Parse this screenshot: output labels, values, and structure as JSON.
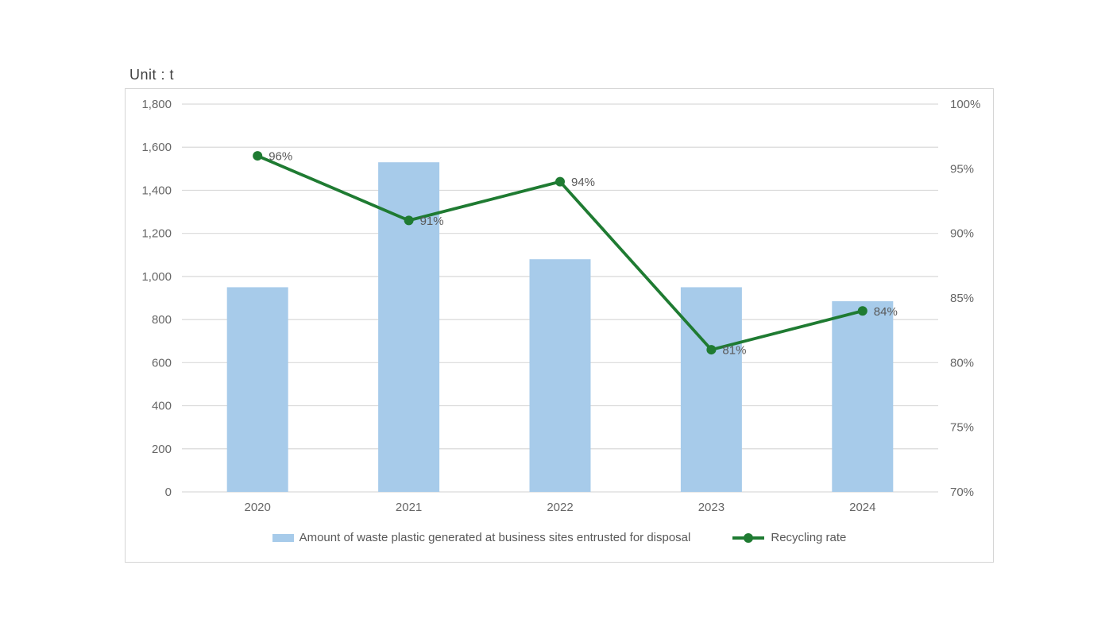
{
  "chart": {
    "unit_label": "Unit : t"
  },
  "chart_data": {
    "type": "combo",
    "title": "",
    "categories": [
      "2020",
      "2021",
      "2022",
      "2023",
      "2024"
    ],
    "series": [
      {
        "name": "Amount of waste plastic generated at business sites entrusted for disposal",
        "type": "bar",
        "axis": "left",
        "values": [
          950,
          1530,
          1080,
          950,
          885
        ],
        "color": "#a7cbea"
      },
      {
        "name": "Recycling rate",
        "type": "line",
        "axis": "right",
        "values": [
          96,
          91,
          94,
          81,
          84
        ],
        "point_labels": [
          "96%",
          "91%",
          "94%",
          "81%",
          "84%"
        ],
        "color": "#1f7b32"
      }
    ],
    "left_axis": {
      "min": 0,
      "max": 1800,
      "step": 200,
      "tick_labels": [
        "0",
        "200",
        "400",
        "600",
        "800",
        "1,000",
        "1,200",
        "1,400",
        "1,600",
        "1,800"
      ]
    },
    "right_axis": {
      "min": 70,
      "max": 100,
      "step": 5,
      "tick_labels": [
        "70%",
        "75%",
        "80%",
        "85%",
        "90%",
        "95%",
        "100%"
      ]
    },
    "grid": true,
    "legend_position": "bottom",
    "colors": {
      "grid": "#d9d9d9",
      "axis_text": "#666666",
      "data_label_text": "#595959",
      "chart_border": "#d5d5d5"
    }
  }
}
